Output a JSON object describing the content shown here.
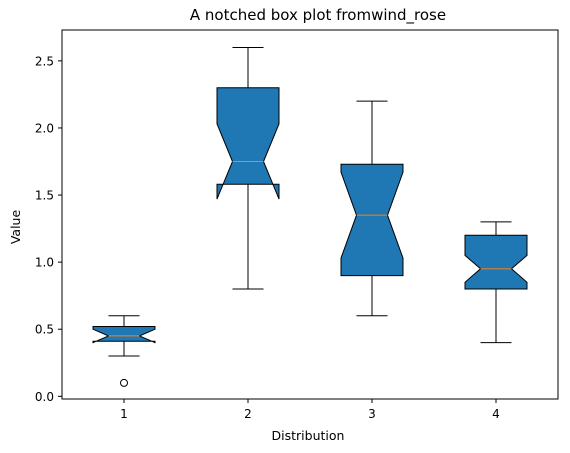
{
  "chart_data": {
    "type": "boxplot",
    "title": "A notched box plot fromwind_rose",
    "xlabel": "Distribution",
    "ylabel": "Value",
    "categories": [
      "1",
      "2",
      "3",
      "4"
    ],
    "xlim": [
      0.5,
      4.5
    ],
    "ylim": [
      -0.02,
      2.73
    ],
    "yticks": [
      0.0,
      0.5,
      1.0,
      1.5,
      2.0,
      2.5
    ],
    "ytick_labels": [
      "0.0",
      "0.5",
      "1.0",
      "1.5",
      "2.0",
      "2.5"
    ],
    "notched": true,
    "grid": false,
    "boxes": [
      {
        "label": "1",
        "whisker_low": 0.3,
        "q1": 0.41,
        "notch_low": 0.4,
        "median": 0.45,
        "notch_high": 0.5,
        "q3": 0.52,
        "whisker_high": 0.6,
        "outliers": [
          0.1
        ]
      },
      {
        "label": "2",
        "whisker_low": 0.8,
        "q1": 1.58,
        "notch_low": 1.47,
        "median": 1.75,
        "notch_high": 2.03,
        "q3": 2.3,
        "whisker_high": 2.6,
        "outliers": []
      },
      {
        "label": "3",
        "whisker_low": 0.6,
        "q1": 0.9,
        "notch_low": 1.03,
        "median": 1.35,
        "notch_high": 1.67,
        "q3": 1.73,
        "whisker_high": 2.2,
        "outliers": []
      },
      {
        "label": "4",
        "whisker_low": 0.4,
        "q1": 0.8,
        "notch_low": 0.85,
        "median": 0.95,
        "notch_high": 1.05,
        "q3": 1.2,
        "whisker_high": 1.3,
        "outliers": []
      }
    ],
    "colors": {
      "box_fill": "#1f77b4",
      "median": "#ff7f0e",
      "edge": "#000000"
    }
  }
}
